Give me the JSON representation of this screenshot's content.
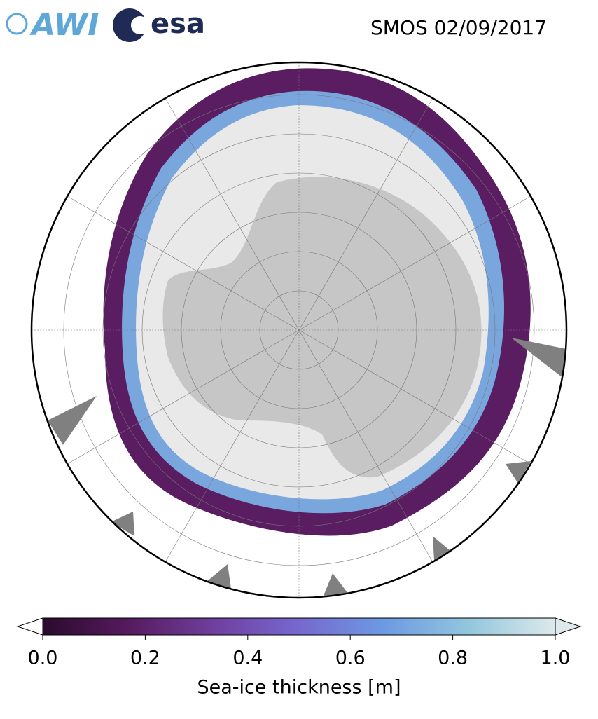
{
  "header": {
    "logos": [
      "AWI",
      "esa"
    ],
    "title": "SMOS 02/09/2017"
  },
  "colorbar": {
    "label": "Sea-ice thickness [m]",
    "range": [
      0,
      1
    ],
    "ticks": [
      {
        "value": 0,
        "label": "0.0"
      },
      {
        "value": 0.2,
        "label": "0.2"
      },
      {
        "value": 0.4,
        "label": "0.4"
      },
      {
        "value": 0.6,
        "label": "0.6"
      },
      {
        "value": 0.8,
        "label": "0.8"
      },
      {
        "value": 1,
        "label": "1.0"
      }
    ],
    "colors": [
      "#2a0b2c",
      "#561a5e",
      "#6f3f9e",
      "#7668cf",
      "#6d9ae2",
      "#93c7de",
      "#dde9ea"
    ]
  }
}
